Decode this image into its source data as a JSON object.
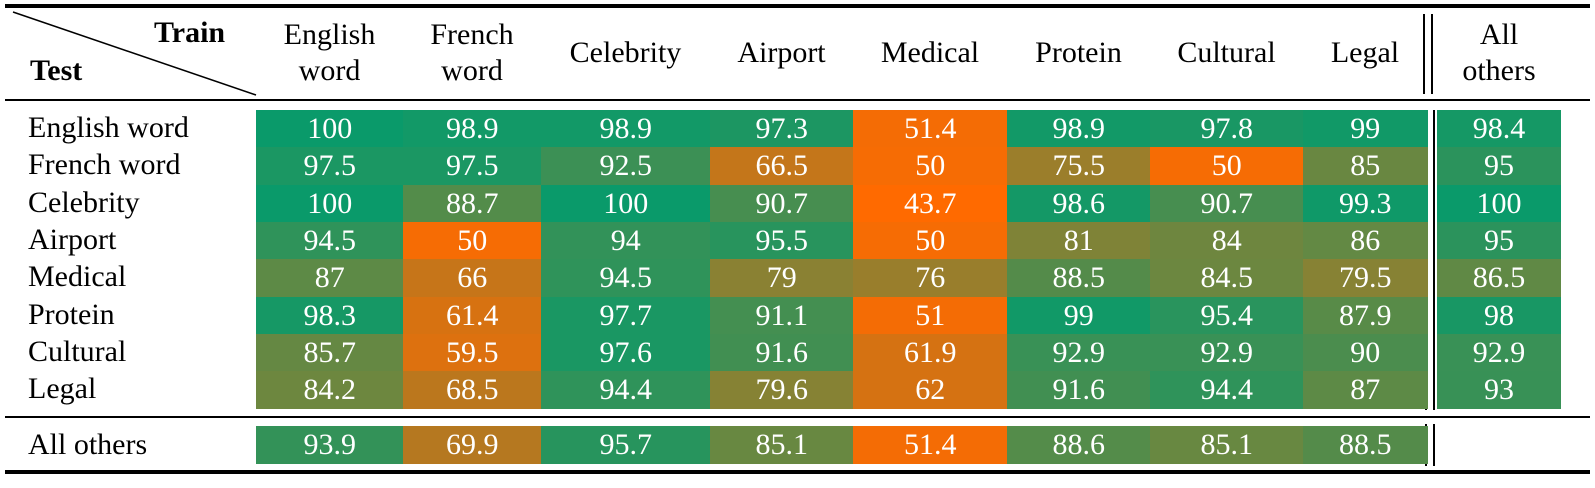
{
  "table": {
    "corner": {
      "train": "Train",
      "test": "Test"
    },
    "columns": [
      "English\nword",
      "French\nword",
      "Celebrity",
      "Airport",
      "Medical",
      "Protein",
      "Cultural",
      "Legal"
    ],
    "all_others_column": "All\nothers",
    "rows": [
      {
        "label": "English word",
        "values": [
          "100",
          "98.9",
          "98.9",
          "97.3",
          "51.4",
          "98.9",
          "97.8",
          "99"
        ],
        "all_others": "98.4"
      },
      {
        "label": "French word",
        "values": [
          "97.5",
          "97.5",
          "92.5",
          "66.5",
          "50",
          "75.5",
          "50",
          "85"
        ],
        "all_others": "95"
      },
      {
        "label": "Celebrity",
        "values": [
          "100",
          "88.7",
          "100",
          "90.7",
          "43.7",
          "98.6",
          "90.7",
          "99.3"
        ],
        "all_others": "100"
      },
      {
        "label": "Airport",
        "values": [
          "94.5",
          "50",
          "94",
          "95.5",
          "50",
          "81",
          "84",
          "86"
        ],
        "all_others": "95"
      },
      {
        "label": "Medical",
        "values": [
          "87",
          "66",
          "94.5",
          "79",
          "76",
          "88.5",
          "84.5",
          "79.5"
        ],
        "all_others": "86.5"
      },
      {
        "label": "Protein",
        "values": [
          "98.3",
          "61.4",
          "97.7",
          "91.1",
          "51",
          "99",
          "95.4",
          "87.9"
        ],
        "all_others": "98"
      },
      {
        "label": "Cultural",
        "values": [
          "85.7",
          "59.5",
          "97.6",
          "91.6",
          "61.9",
          "92.9",
          "92.9",
          "90"
        ],
        "all_others": "92.9"
      },
      {
        "label": "Legal",
        "values": [
          "84.2",
          "68.5",
          "94.4",
          "79.6",
          "62",
          "91.6",
          "94.4",
          "87"
        ],
        "all_others": "93"
      }
    ],
    "all_others_row": {
      "label": "All others",
      "values": [
        "93.9",
        "69.9",
        "95.7",
        "85.1",
        "51.4",
        "88.6",
        "85.1",
        "88.5"
      ]
    }
  },
  "colors": {
    "high": "#0a9a6a",
    "low": "#ff6a00"
  }
}
